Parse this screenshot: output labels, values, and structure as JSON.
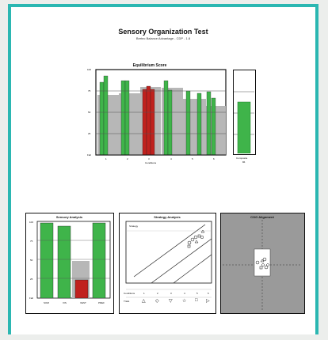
{
  "report": {
    "title": "Sensory Organization Test",
    "subtitle": "Bertec Balance Advantage - CDP - 1.8"
  },
  "colors": {
    "frame": "#2bb7b2",
    "green": "#3fb44a",
    "red": "#c0211e",
    "gray": "#b7b7b7",
    "panel_gray": "#9a9a9a"
  },
  "charts": {
    "equilibrium": {
      "title": "Equilibrium Score",
      "xlabel": "Conditions",
      "yticks": [
        "100",
        "75",
        "50",
        "25",
        "Fall"
      ],
      "xticks": [
        "1",
        "2",
        "3",
        "4",
        "5",
        "6"
      ],
      "composite_label": "Composite",
      "composite_tick": "86"
    },
    "sensory": {
      "title": "Sensory Analysis",
      "yticks": [
        "100",
        "75",
        "50",
        "25",
        "Fall"
      ],
      "xticks": [
        "SOM",
        "VIS",
        "VEST",
        "PREF"
      ]
    },
    "strategy": {
      "title": "Strategy Analysis",
      "legend_label": "Strategy",
      "row_labels": [
        "Conditions",
        "Trials"
      ],
      "condition_symbols": [
        "1",
        "2",
        "3",
        "4",
        "5",
        "6"
      ],
      "marker_symbols": [
        "△",
        "◇",
        "▽",
        "☆",
        "□",
        "▷"
      ]
    },
    "cog": {
      "title": "COG Alignment"
    }
  }
}
